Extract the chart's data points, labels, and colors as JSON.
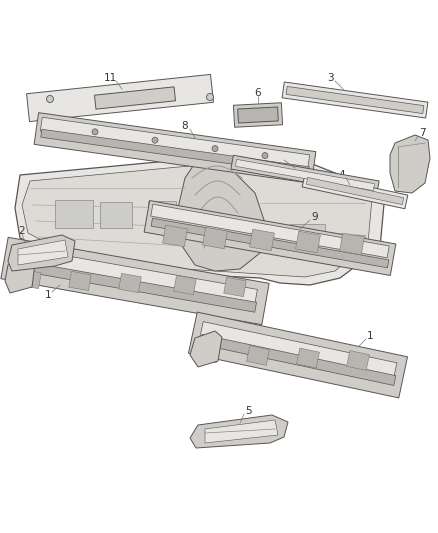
{
  "background_color": "#ffffff",
  "fig_width": 4.38,
  "fig_height": 5.33,
  "dpi": 100,
  "edge_color": "#555555",
  "detail_color": "#888884",
  "face_light": "#e8e6e2",
  "face_mid": "#d0cdc8",
  "face_dark": "#b8b5b0",
  "label_fontsize": 7.5,
  "label_color": "#333333"
}
